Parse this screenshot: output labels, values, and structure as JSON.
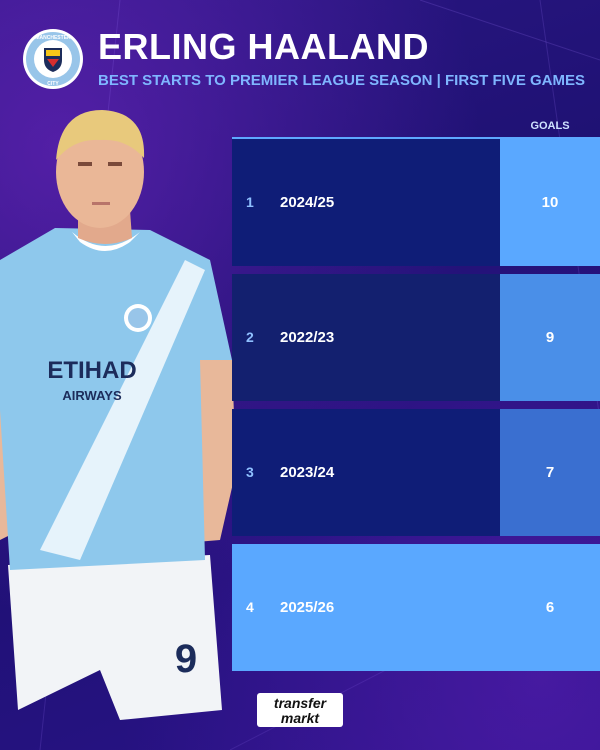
{
  "header": {
    "crest_text_top": "MANCHESTER",
    "crest_text_bottom": "CITY",
    "title": "ERLING HAALAND",
    "subtitle": "BEST STARTS TO PREMIER LEAGUE SEASON | FIRST FIVE GAMES"
  },
  "player": {
    "sponsor": "ETIHAD",
    "sponsor_sub": "AIRWAYS",
    "shirt_number": "9"
  },
  "table": {
    "column_header": "GOALS",
    "rows": [
      {
        "rank": "1",
        "season": "2024/25",
        "goals": "10"
      },
      {
        "rank": "2",
        "season": "2022/23",
        "goals": "9"
      },
      {
        "rank": "3",
        "season": "2023/24",
        "goals": "7"
      },
      {
        "rank": "4",
        "season": "2025/26",
        "goals": "6"
      }
    ]
  },
  "footer": {
    "logo_line1": "transfer",
    "logo_line2": "markt"
  },
  "colors": {
    "background": "#1c1070",
    "accent_blue": "#5aa8ff",
    "dark_cell": "#0f1d77",
    "subtitle": "#7fb6ff"
  }
}
